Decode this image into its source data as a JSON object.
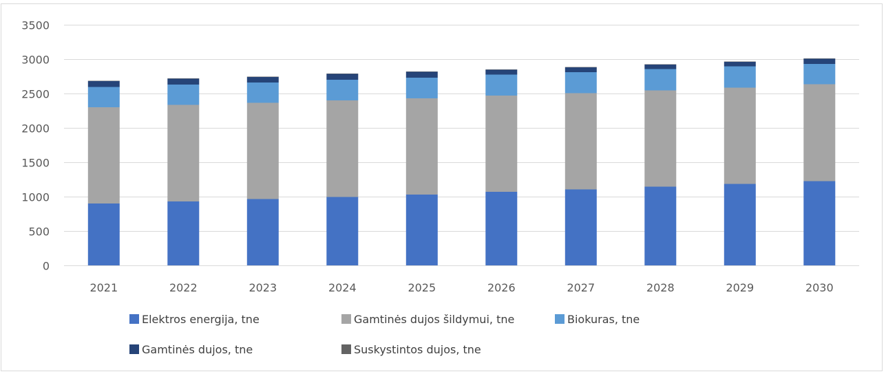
{
  "chart_data": {
    "type": "bar",
    "stacked": true,
    "categories": [
      "2021",
      "2022",
      "2023",
      "2024",
      "2025",
      "2026",
      "2027",
      "2028",
      "2029",
      "2030"
    ],
    "series": [
      {
        "name": "Elektros energija, tne",
        "color": "#4472C4",
        "values": [
          900,
          930,
          965,
          995,
          1030,
          1070,
          1105,
          1145,
          1185,
          1225
        ]
      },
      {
        "name": "Gamtinės dujos šildymui, tne",
        "color": "#A5A5A5",
        "values": [
          1400,
          1405,
          1400,
          1405,
          1400,
          1400,
          1400,
          1400,
          1400,
          1410
        ]
      },
      {
        "name": "Biokuras, tne",
        "color": "#5B9BD5",
        "values": [
          295,
          295,
          295,
          300,
          300,
          305,
          305,
          310,
          310,
          295
        ]
      },
      {
        "name": "Gamtinės dujos, tne",
        "color": "#264478",
        "values": [
          85,
          85,
          80,
          85,
          85,
          70,
          70,
          65,
          65,
          75
        ]
      },
      {
        "name": "Suskystintos dujos, tne",
        "color": "#636363",
        "values": [
          5,
          5,
          5,
          5,
          5,
          5,
          5,
          5,
          5,
          5
        ]
      }
    ],
    "ylim": [
      0,
      3500
    ],
    "yticks": [
      0,
      500,
      1000,
      1500,
      2000,
      2500,
      3000,
      3500
    ],
    "grid": true,
    "legend_position": "bottom"
  }
}
